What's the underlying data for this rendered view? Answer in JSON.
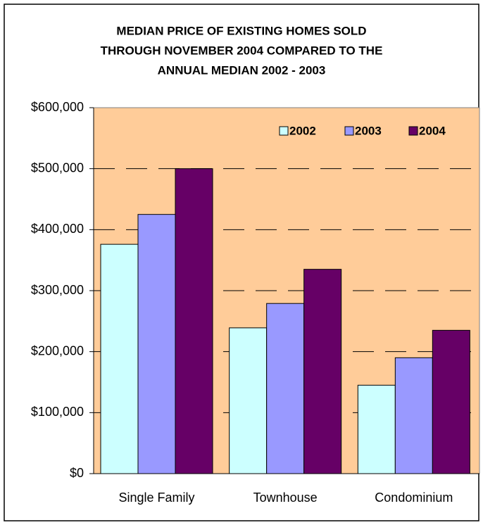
{
  "chart_data": {
    "type": "bar",
    "title": [
      "MEDIAN PRICE OF EXISTING HOMES SOLD",
      "THROUGH NOVEMBER 2004 COMPARED TO THE",
      "ANNUAL MEDIAN 2002 - 2003"
    ],
    "categories": [
      "Single Family",
      "Townhouse",
      "Condominium"
    ],
    "series": [
      {
        "name": "2002",
        "color": "#ccffff",
        "values": [
          376000,
          239000,
          145000
        ]
      },
      {
        "name": "2003",
        "color": "#9999ff",
        "values": [
          425000,
          279000,
          190000
        ]
      },
      {
        "name": "2004",
        "color": "#660066",
        "values": [
          500000,
          335000,
          235000
        ]
      }
    ],
    "ylim": [
      0,
      600000
    ],
    "yticks": [
      {
        "value": 0,
        "label": "$0"
      },
      {
        "value": 100000,
        "label": "$100,000"
      },
      {
        "value": 200000,
        "label": "$200,000"
      },
      {
        "value": 300000,
        "label": "$300,000"
      },
      {
        "value": 400000,
        "label": "$400,000"
      },
      {
        "value": 500000,
        "label": "$500,000"
      },
      {
        "value": 600000,
        "label": "$600,000"
      }
    ],
    "grid": true,
    "legend": "top-right",
    "plot_background": "#ffcc99"
  }
}
